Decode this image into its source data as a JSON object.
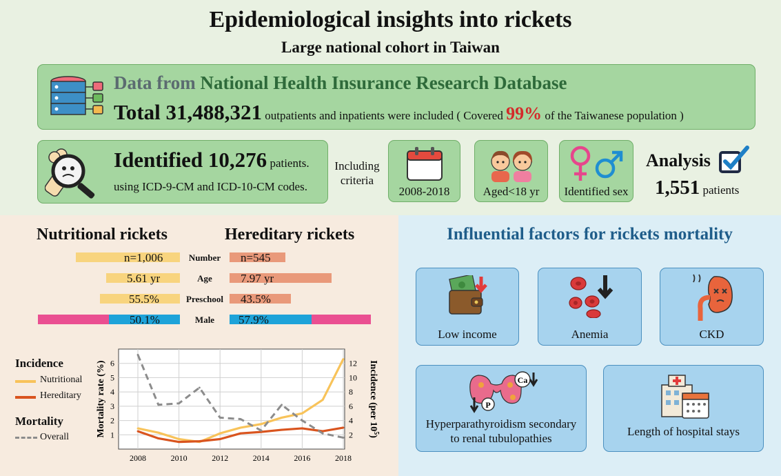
{
  "header": {
    "title": "Epidemiological insights into rickets",
    "subtitle": "Large national cohort in Taiwan"
  },
  "database": {
    "prefix": "Data from ",
    "name": "National Health Insurance Research Database",
    "total_label": "Total 31,488,321",
    "total_desc_1": " outpatients and inpatients were included ( Covered ",
    "coverage": "99%",
    "total_desc_2": " of the Taiwanese population )"
  },
  "identified": {
    "title": "Identified 10,276",
    "unit": " patients.",
    "codes": "using ICD-9-CM and ICD-10-CM codes."
  },
  "criteria": {
    "label_line1": "Including",
    "label_line2": "criteria",
    "years": "2008-2018",
    "age": "Aged<18 yr",
    "sex": "Identified sex"
  },
  "analysis": {
    "title": "Analysis",
    "count": "1,551",
    "unit": " patients"
  },
  "comparison": {
    "left_title": "Nutritional rickets",
    "right_title": "Hereditary rickets",
    "rows": [
      {
        "label": "Number",
        "nutritional": "n=1,006",
        "hereditary": "n=545"
      },
      {
        "label": "Age",
        "nutritional": "5.61 yr",
        "hereditary": "7.97 yr"
      },
      {
        "label": "Preschool",
        "nutritional": "55.5%",
        "hereditary": "43.5%"
      },
      {
        "label": "Male",
        "nutritional": "50.1%",
        "hereditary": "57.9%"
      }
    ],
    "male_fraction": {
      "nutritional": 0.501,
      "hereditary": 0.579
    },
    "colors": {
      "male": "#1ea3d9",
      "female": "#ea4f91",
      "nutritional": "#f8d47e",
      "hereditary": "#e9997a"
    }
  },
  "legend": {
    "incidence_title": "Incidence",
    "nutritional": "Nutritional",
    "hereditary": "Hereditary",
    "mortality_title": "Mortality",
    "overall": "Overall"
  },
  "chart_data": {
    "type": "line",
    "x": [
      2008,
      2009,
      2010,
      2011,
      2012,
      2013,
      2014,
      2015,
      2016,
      2017,
      2018
    ],
    "xticks": [
      "2008",
      "2010",
      "2012",
      "2014",
      "2016",
      "2018"
    ],
    "series": [
      {
        "name": "Nutritional",
        "axis": "right",
        "color": "#f8c35a",
        "values": [
          2.9,
          2.3,
          1.4,
          1.0,
          2.2,
          3.0,
          3.5,
          4.4,
          5.0,
          6.9,
          12.6
        ]
      },
      {
        "name": "Hereditary",
        "axis": "right",
        "color": "#d9541e",
        "values": [
          2.5,
          1.5,
          1.0,
          1.1,
          1.4,
          2.2,
          2.4,
          2.7,
          2.9,
          2.5,
          3.0
        ]
      },
      {
        "name": "Overall",
        "axis": "left",
        "color": "#8c8c8c",
        "dashed": true,
        "values": [
          6.6,
          3.1,
          3.2,
          4.3,
          2.2,
          2.1,
          1.3,
          3.1,
          2.0,
          1.1,
          0.8
        ]
      }
    ],
    "ylabel_left": "Mortality rate (%)",
    "ylabel_right": "Incidence (per 10",
    "ylabel_right_sup": "5",
    "ylabel_right_end": ")",
    "ylim_left": [
      0,
      7
    ],
    "yticks_left": [
      "1",
      "2",
      "3",
      "4",
      "5",
      "6"
    ],
    "ylim_right": [
      0,
      14
    ],
    "yticks_right": [
      "2",
      "4",
      "6",
      "8",
      "10",
      "12"
    ],
    "grid": true
  },
  "factors": {
    "title": "Influential factors for rickets mortality",
    "items": [
      {
        "label": "Low income"
      },
      {
        "label": "Anemia"
      },
      {
        "label": "CKD"
      },
      {
        "label_line1": "Hyperparathyroidism secondary",
        "label_line2": "to renal tubulopathies"
      },
      {
        "label": "Length of hospital stays"
      }
    ],
    "ca_symbol": "Ca",
    "p_symbol": "P"
  }
}
